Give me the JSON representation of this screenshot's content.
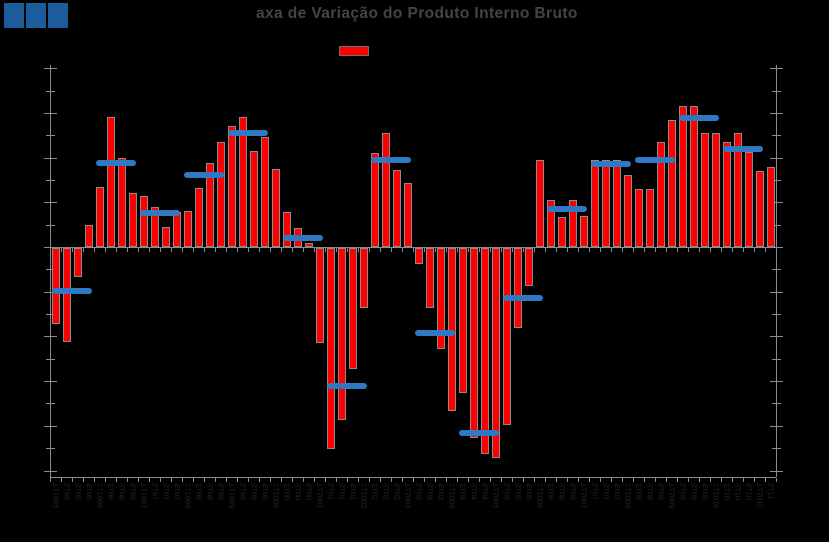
{
  "title": "axa de Variação do Produto Interno Bruto",
  "logo": {
    "square_count": 3,
    "color": "#1d5c9c"
  },
  "legend": {
    "swatch_color": "#fe0000"
  },
  "colors": {
    "background": "#000000",
    "bar_fill": "#fe0000",
    "bar_border": "#8c8c8c",
    "annual_marker": "#2e78c4",
    "axis": "#8c8c8c",
    "x_label": "#262626",
    "title": "#454545"
  },
  "chart_data": {
    "type": "bar",
    "title": "axa de Variação do Produto Interno Bruto",
    "xlabel": "",
    "ylabel": "",
    "ylim": [
      -10,
      8
    ],
    "ytick_step": 1,
    "ytick_labels_visible": false,
    "grid": false,
    "legend_position": "top-center",
    "categories": [
      "1T1995",
      "2T95",
      "3T95",
      "4T95",
      "1T1996",
      "2T96",
      "3T96",
      "4T96",
      "1T1997",
      "2T97",
      "3T97",
      "4T97",
      "1T1998",
      "2T98",
      "3T98",
      "4T98",
      "1T1999",
      "2T99",
      "3T99",
      "4T99",
      "1T2000",
      "2T00",
      "3T00",
      "4T00",
      "1T2001",
      "2T01",
      "3T01",
      "4T01",
      "1T2002",
      "2T02",
      "3T02",
      "4T02",
      "1T2003",
      "2T03",
      "3T03",
      "4T03",
      "1T2004",
      "2T04",
      "3T04",
      "4T04",
      "1T2005",
      "2T05",
      "3T05",
      "4T05",
      "1T2006",
      "2T06",
      "3T06",
      "4T06",
      "1T2007",
      "2T07",
      "3T07",
      "4T07",
      "1T2008",
      "2T08",
      "3T08",
      "4T08",
      "1T2009",
      "2T09",
      "3T09",
      "4T09",
      "1T2010",
      "2T10",
      "3T10",
      "4T10",
      "1T2011",
      "2T11"
    ],
    "series": [
      {
        "name": "quarterly-variation-bars",
        "type": "bar",
        "color": "#fe0000",
        "values": [
          -3.4,
          -4.2,
          -1.3,
          1.0,
          2.7,
          5.8,
          4.0,
          2.4,
          2.3,
          1.8,
          0.9,
          1.55,
          1.6,
          2.65,
          3.75,
          4.7,
          5.4,
          5.8,
          4.3,
          4.9,
          3.5,
          1.55,
          0.85,
          0.2,
          -4.25,
          -9.0,
          -7.7,
          -5.4,
          -2.7,
          4.2,
          5.1,
          3.45,
          2.85,
          -0.7,
          -2.7,
          -4.5,
          -7.3,
          -6.5,
          -8.5,
          -9.2,
          -9.4,
          -7.9,
          -3.6,
          -1.7,
          3.9,
          2.1,
          1.35,
          2.1,
          1.4,
          3.9,
          3.9,
          3.9,
          3.2,
          2.6,
          2.6,
          4.7,
          5.7,
          6.3,
          6.3,
          5.1,
          5.1,
          4.7,
          5.1,
          4.25,
          3.4,
          3.6
        ]
      },
      {
        "name": "annual-average-segments",
        "type": "segment",
        "color": "#2e78c4",
        "segments": [
          {
            "start_index": 0,
            "value": -1.95
          },
          {
            "start_index": 4,
            "value": 3.75
          },
          {
            "start_index": 8,
            "value": 1.5
          },
          {
            "start_index": 12,
            "value": 3.2
          },
          {
            "start_index": 16,
            "value": 5.1
          },
          {
            "start_index": 21,
            "value": 0.4
          },
          {
            "start_index": 25,
            "value": -6.2
          },
          {
            "start_index": 29,
            "value": 3.9
          },
          {
            "start_index": 33,
            "value": -3.85
          },
          {
            "start_index": 37,
            "value": -8.3
          },
          {
            "start_index": 41,
            "value": -2.3
          },
          {
            "start_index": 45,
            "value": 1.7
          },
          {
            "start_index": 49,
            "value": 3.7
          },
          {
            "start_index": 53,
            "value": 3.9
          },
          {
            "start_index": 57,
            "value": 5.75
          },
          {
            "start_index": 61,
            "value": 4.4
          }
        ]
      }
    ]
  }
}
